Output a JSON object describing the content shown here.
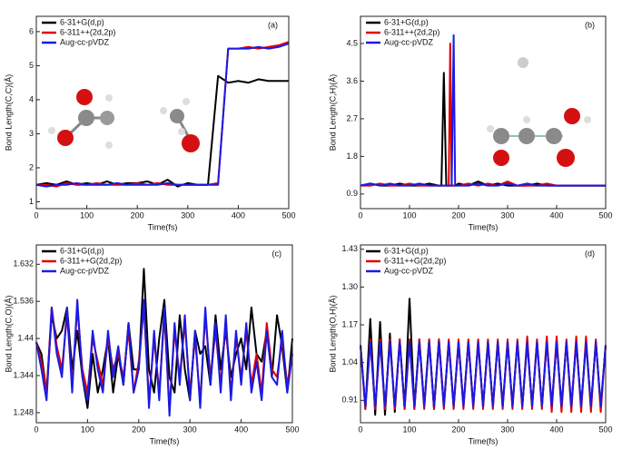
{
  "chart_data": [
    {
      "type": "line",
      "panel_label": "(a)",
      "x_label": "Time(fs)",
      "y_label": "Bond Length(C,C)(Å)",
      "x": [
        0,
        20,
        40,
        60,
        80,
        100,
        120,
        140,
        160,
        180,
        200,
        220,
        240,
        260,
        280,
        300,
        320,
        340,
        360,
        380,
        400,
        420,
        440,
        460,
        480,
        500
      ],
      "xlim": [
        0,
        500
      ],
      "xticks": [
        0,
        100,
        200,
        300,
        400,
        500
      ],
      "ylim": [
        0.8,
        6.45
      ],
      "yticks": [
        1,
        2,
        3,
        4,
        5,
        6
      ],
      "series": [
        {
          "name": "6-31+G(d,p)",
          "color": "#000000",
          "values": [
            1.5,
            1.55,
            1.5,
            1.6,
            1.5,
            1.55,
            1.5,
            1.6,
            1.5,
            1.55,
            1.55,
            1.6,
            1.5,
            1.65,
            1.45,
            1.55,
            1.5,
            1.5,
            4.7,
            4.5,
            4.55,
            4.5,
            4.6,
            4.55,
            4.55,
            4.55
          ]
        },
        {
          "name": "6-311++(2d,2p)",
          "color": "#e00000",
          "values": [
            1.5,
            1.5,
            1.45,
            1.55,
            1.5,
            1.5,
            1.55,
            1.5,
            1.5,
            1.5,
            1.55,
            1.5,
            1.55,
            1.5,
            1.5,
            1.5,
            1.5,
            1.5,
            1.55,
            5.5,
            5.5,
            5.55,
            5.5,
            5.55,
            5.6,
            5.7
          ]
        },
        {
          "name": "Aug-cc-pVDZ",
          "color": "#1a1ae6",
          "values": [
            1.5,
            1.45,
            1.5,
            1.5,
            1.55,
            1.5,
            1.5,
            1.5,
            1.55,
            1.5,
            1.5,
            1.5,
            1.5,
            1.55,
            1.5,
            1.5,
            1.5,
            1.5,
            1.5,
            5.5,
            5.5,
            5.5,
            5.55,
            5.5,
            5.55,
            5.65
          ]
        }
      ]
    },
    {
      "type": "line",
      "panel_label": "(b)",
      "x_label": "Time(fs)",
      "y_label": "Bond Length(C,H)(Å)",
      "x": [
        0,
        20,
        40,
        60,
        80,
        100,
        120,
        140,
        160,
        165,
        170,
        175,
        180,
        183,
        186,
        190,
        193,
        200,
        220,
        240,
        260,
        280,
        300,
        320,
        340,
        360,
        380,
        400,
        420,
        440,
        460,
        480,
        500
      ],
      "xlim": [
        0,
        500
      ],
      "xticks": [
        0,
        100,
        200,
        300,
        400,
        500
      ],
      "ylim": [
        0.55,
        5.15
      ],
      "yticks": [
        0.9,
        1.8,
        2.7,
        3.6,
        4.5
      ],
      "series": [
        {
          "name": "6-31+G(d,p)",
          "color": "#000000",
          "values": [
            1.1,
            1.15,
            1.1,
            1.1,
            1.15,
            1.1,
            1.1,
            1.15,
            1.1,
            1.1,
            3.8,
            1.1,
            1.1,
            1.1,
            1.1,
            1.1,
            1.1,
            1.15,
            1.1,
            1.2,
            1.1,
            1.15,
            1.1,
            1.1,
            1.1,
            1.15,
            1.1,
            1.1,
            1.1,
            1.1,
            1.1,
            1.1,
            1.1
          ]
        },
        {
          "name": "6-311++(2d,2p)",
          "color": "#e00000",
          "values": [
            1.1,
            1.1,
            1.15,
            1.1,
            1.1,
            1.15,
            1.1,
            1.1,
            1.1,
            1.1,
            1.1,
            1.1,
            1.1,
            4.5,
            1.1,
            1.1,
            1.1,
            1.1,
            1.15,
            1.1,
            1.15,
            1.1,
            1.2,
            1.1,
            1.1,
            1.1,
            1.15,
            1.1,
            1.1,
            1.1,
            1.1,
            1.1,
            1.1
          ]
        },
        {
          "name": "Aug-cc-pVDZ",
          "color": "#1a1ae6",
          "values": [
            1.1,
            1.15,
            1.1,
            1.15,
            1.1,
            1.1,
            1.15,
            1.1,
            1.1,
            1.1,
            1.1,
            1.1,
            1.1,
            1.1,
            1.1,
            4.7,
            1.1,
            1.1,
            1.1,
            1.15,
            1.1,
            1.1,
            1.15,
            1.1,
            1.15,
            1.1,
            1.1,
            1.1,
            1.1,
            1.1,
            1.1,
            1.1,
            1.1
          ]
        }
      ]
    },
    {
      "type": "line",
      "panel_label": "(c)",
      "x_label": "Time(fs)",
      "y_label": "Bond Length(C,O)(Å)",
      "x": [
        0,
        10,
        20,
        30,
        40,
        50,
        60,
        70,
        80,
        90,
        100,
        110,
        120,
        130,
        140,
        150,
        160,
        170,
        180,
        190,
        200,
        210,
        220,
        230,
        240,
        250,
        260,
        270,
        280,
        290,
        300,
        310,
        320,
        330,
        340,
        350,
        360,
        370,
        380,
        390,
        400,
        410,
        420,
        430,
        440,
        450,
        460,
        470,
        480,
        490,
        500
      ],
      "xlim": [
        0,
        500
      ],
      "xticks": [
        0,
        100,
        200,
        300,
        400,
        500
      ],
      "ylim": [
        1.222,
        1.682
      ],
      "yticks": [
        1.248,
        1.344,
        1.44,
        1.536,
        1.632
      ],
      "series": [
        {
          "name": "6-31+G(d,p)",
          "color": "#000000",
          "values": [
            1.43,
            1.4,
            1.3,
            1.5,
            1.44,
            1.46,
            1.52,
            1.36,
            1.46,
            1.34,
            1.26,
            1.4,
            1.3,
            1.36,
            1.44,
            1.3,
            1.4,
            1.32,
            1.48,
            1.36,
            1.36,
            1.62,
            1.36,
            1.3,
            1.44,
            1.54,
            1.34,
            1.3,
            1.5,
            1.36,
            1.28,
            1.46,
            1.4,
            1.42,
            1.32,
            1.5,
            1.36,
            1.46,
            1.34,
            1.4,
            1.44,
            1.36,
            1.52,
            1.4,
            1.38,
            1.46,
            1.34,
            1.5,
            1.42,
            1.3,
            1.44
          ]
        },
        {
          "name": "6-311++G(2d,2p)",
          "color": "#e00000",
          "values": [
            1.43,
            1.38,
            1.3,
            1.52,
            1.42,
            1.36,
            1.5,
            1.32,
            1.52,
            1.36,
            1.3,
            1.44,
            1.38,
            1.32,
            1.44,
            1.36,
            1.4,
            1.34,
            1.46,
            1.3,
            1.38,
            1.52,
            1.28,
            1.44,
            1.3,
            1.5,
            1.26,
            1.46,
            1.34,
            1.48,
            1.3,
            1.44,
            1.28,
            1.5,
            1.34,
            1.46,
            1.32,
            1.48,
            1.3,
            1.44,
            1.34,
            1.46,
            1.32,
            1.4,
            1.3,
            1.48,
            1.36,
            1.34,
            1.44,
            1.32,
            1.4
          ]
        },
        {
          "name": "Aug-cc-pVDZ",
          "color": "#1a1ae6",
          "values": [
            1.43,
            1.36,
            1.28,
            1.52,
            1.4,
            1.34,
            1.52,
            1.3,
            1.54,
            1.34,
            1.28,
            1.46,
            1.36,
            1.3,
            1.46,
            1.34,
            1.42,
            1.32,
            1.48,
            1.3,
            1.36,
            1.54,
            1.26,
            1.46,
            1.28,
            1.52,
            1.24,
            1.48,
            1.32,
            1.5,
            1.28,
            1.46,
            1.26,
            1.52,
            1.32,
            1.48,
            1.3,
            1.5,
            1.28,
            1.46,
            1.32,
            1.48,
            1.3,
            1.38,
            1.28,
            1.46,
            1.34,
            1.32,
            1.46,
            1.3,
            1.4
          ]
        }
      ]
    },
    {
      "type": "line",
      "panel_label": "(d)",
      "x_label": "Time(fs)",
      "y_label": "Bond Length(O,H)(Å)",
      "x": [
        0,
        10,
        20,
        30,
        40,
        50,
        60,
        70,
        80,
        90,
        100,
        110,
        120,
        130,
        140,
        150,
        160,
        170,
        180,
        190,
        200,
        210,
        220,
        230,
        240,
        250,
        260,
        270,
        280,
        290,
        300,
        310,
        320,
        330,
        340,
        350,
        360,
        370,
        380,
        390,
        400,
        410,
        420,
        430,
        440,
        450,
        460,
        470,
        480,
        490,
        500
      ],
      "xlim": [
        0,
        500
      ],
      "xticks": [
        0,
        100,
        200,
        300,
        400,
        500
      ],
      "ylim": [
        0.833,
        1.445
      ],
      "yticks": [
        0.91,
        1.04,
        1.17,
        {
          "value": 1.3,
          "label": "1.30"
        },
        1.43
      ],
      "series": [
        {
          "name": "6-31+G(d,p)",
          "color": "#000000",
          "values": [
            1.1,
            0.88,
            1.19,
            0.86,
            1.18,
            0.86,
            1.14,
            0.87,
            1.12,
            0.88,
            1.26,
            0.88,
            1.12,
            0.89,
            1.12,
            0.88,
            1.12,
            0.89,
            1.11,
            0.89,
            1.11,
            0.89,
            1.11,
            0.89,
            1.11,
            0.89,
            1.11,
            0.89,
            1.11,
            0.89,
            1.11,
            0.89,
            1.11,
            0.89,
            1.11,
            0.89,
            1.11,
            0.89,
            1.11,
            0.89,
            1.11,
            0.89,
            1.11,
            0.89,
            1.11,
            0.89,
            1.11,
            0.89,
            1.11,
            0.89,
            1.1
          ]
        },
        {
          "name": "6-311++G(2d,2p)",
          "color": "#e00000",
          "values": [
            1.1,
            0.88,
            1.12,
            0.88,
            1.12,
            0.88,
            1.12,
            0.88,
            1.12,
            0.88,
            1.12,
            0.88,
            1.12,
            0.88,
            1.12,
            0.88,
            1.12,
            0.88,
            1.12,
            0.88,
            1.12,
            0.88,
            1.12,
            0.88,
            1.12,
            0.88,
            1.12,
            0.88,
            1.12,
            0.88,
            1.12,
            0.88,
            1.12,
            0.88,
            1.13,
            0.88,
            1.12,
            0.88,
            1.13,
            0.87,
            1.13,
            0.87,
            1.12,
            0.87,
            1.13,
            0.87,
            1.13,
            0.87,
            1.12,
            0.87,
            1.1
          ]
        },
        {
          "name": "Aug-cc-pVDZ",
          "color": "#1a1ae6",
          "values": [
            1.1,
            0.89,
            1.11,
            0.89,
            1.11,
            0.89,
            1.11,
            0.89,
            1.11,
            0.89,
            1.11,
            0.89,
            1.11,
            0.89,
            1.11,
            0.89,
            1.11,
            0.89,
            1.11,
            0.89,
            1.11,
            0.89,
            1.11,
            0.89,
            1.11,
            0.89,
            1.11,
            0.89,
            1.11,
            0.89,
            1.11,
            0.89,
            1.11,
            0.89,
            1.11,
            0.89,
            1.11,
            0.89,
            1.11,
            0.89,
            1.11,
            0.89,
            1.11,
            0.89,
            1.11,
            0.89,
            1.11,
            0.89,
            1.11,
            0.89,
            1.1
          ]
        }
      ]
    }
  ]
}
